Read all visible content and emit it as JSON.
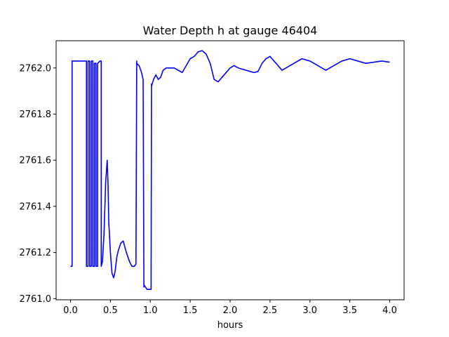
{
  "chart_data": {
    "type": "line",
    "title": "Water Depth h at gauge 46404",
    "xlabel": "hours",
    "ylabel": "",
    "xlim": [
      -0.18,
      4.18
    ],
    "ylim": [
      2760.995,
      2762.118
    ],
    "xticks": [
      0.0,
      0.5,
      1.0,
      1.5,
      2.0,
      2.5,
      3.0,
      3.5,
      4.0
    ],
    "xtick_labels": [
      "0.0",
      "0.5",
      "1.0",
      "1.5",
      "2.0",
      "2.5",
      "3.0",
      "3.5",
      "4.0"
    ],
    "yticks": [
      2761.0,
      2761.2,
      2761.4,
      2761.6,
      2761.8,
      2762.0
    ],
    "ytick_labels": [
      "2761.0",
      "2761.2",
      "2761.4",
      "2761.6",
      "2761.8",
      "2762.0"
    ],
    "grid": false,
    "series": [
      {
        "color": "#0000ff",
        "x": [
          0.0,
          0.02,
          0.02,
          0.05,
          0.1,
          0.15,
          0.19,
          0.2,
          0.2,
          0.22,
          0.22,
          0.24,
          0.24,
          0.26,
          0.26,
          0.28,
          0.28,
          0.3,
          0.3,
          0.32,
          0.32,
          0.34,
          0.34,
          0.37,
          0.385,
          0.385,
          0.4,
          0.42,
          0.44,
          0.46,
          0.47,
          0.48,
          0.5,
          0.52,
          0.54,
          0.56,
          0.58,
          0.6,
          0.63,
          0.66,
          0.7,
          0.74,
          0.77,
          0.8,
          0.82,
          0.83,
          0.83,
          0.86,
          0.89,
          0.91,
          0.92,
          0.92,
          0.94,
          0.96,
          0.99,
          1.01,
          1.015,
          1.015,
          1.04,
          1.07,
          1.1,
          1.13,
          1.16,
          1.2,
          1.25,
          1.3,
          1.35,
          1.4,
          1.45,
          1.5,
          1.55,
          1.6,
          1.65,
          1.7,
          1.75,
          1.8,
          1.85,
          1.9,
          1.95,
          2.0,
          2.05,
          2.1,
          2.2,
          2.3,
          2.35,
          2.4,
          2.45,
          2.5,
          2.55,
          2.6,
          2.65,
          2.7,
          2.8,
          2.9,
          3.0,
          3.05,
          3.1,
          3.15,
          3.2,
          3.3,
          3.4,
          3.5,
          3.6,
          3.7,
          3.8,
          3.9,
          4.0
        ],
        "y": [
          2761.14,
          2761.14,
          2762.03,
          2762.03,
          2762.03,
          2762.03,
          2762.03,
          2762.03,
          2761.14,
          2761.14,
          2762.03,
          2762.03,
          2761.14,
          2761.14,
          2762.03,
          2762.03,
          2761.14,
          2761.14,
          2762.02,
          2762.02,
          2761.14,
          2761.14,
          2762.02,
          2762.03,
          2762.03,
          2761.14,
          2761.16,
          2761.28,
          2761.5,
          2761.6,
          2761.5,
          2761.33,
          2761.2,
          2761.11,
          2761.09,
          2761.12,
          2761.18,
          2761.21,
          2761.24,
          2761.25,
          2761.2,
          2761.16,
          2761.14,
          2761.14,
          2761.15,
          2762.03,
          2762.02,
          2762.01,
          2761.98,
          2761.95,
          2761.05,
          2761.06,
          2761.05,
          2761.04,
          2761.04,
          2761.04,
          2761.93,
          2761.92,
          2761.95,
          2761.97,
          2761.95,
          2761.96,
          2761.99,
          2762.0,
          2762.0,
          2762.0,
          2761.99,
          2761.98,
          2762.01,
          2762.04,
          2762.05,
          2762.07,
          2762.075,
          2762.06,
          2762.02,
          2761.95,
          2761.94,
          2761.96,
          2761.98,
          2762.0,
          2762.01,
          2762.0,
          2761.99,
          2761.98,
          2761.985,
          2762.02,
          2762.04,
          2762.05,
          2762.03,
          2762.01,
          2761.99,
          2762.0,
          2762.02,
          2762.04,
          2762.03,
          2762.02,
          2762.01,
          2762.0,
          2761.99,
          2762.01,
          2762.03,
          2762.04,
          2762.03,
          2762.02,
          2762.025,
          2762.03,
          2762.025
        ]
      }
    ]
  }
}
